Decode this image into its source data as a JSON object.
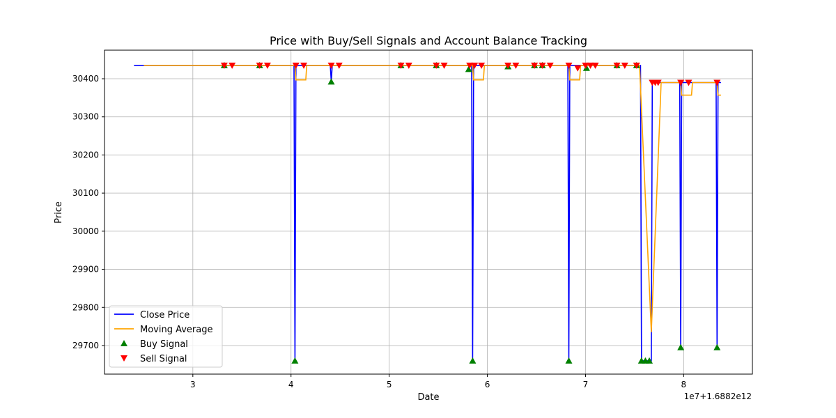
{
  "chart_data": {
    "type": "line",
    "title": "Price with Buy/Sell Signals and Account Balance Tracking",
    "xlabel": "Date",
    "ylabel": "Price",
    "x_offset_label": "1e7+1.6882e12",
    "xlim": [
      2.1,
      8.7
    ],
    "ylim": [
      29625,
      30475
    ],
    "x_ticks": [
      3,
      4,
      5,
      6,
      7,
      8
    ],
    "y_ticks": [
      29700,
      29800,
      29900,
      30000,
      30100,
      30200,
      30300,
      30400
    ],
    "grid": true,
    "legend_position": "lower-left",
    "colors": {
      "close": "#0000ff",
      "ma": "#ffa500",
      "buy": "#008000",
      "sell": "#ff0000",
      "grid": "#b0b0b0"
    },
    "series": [
      {
        "name": "Close Price",
        "points": [
          [
            2.4,
            30435
          ],
          [
            4.03,
            30435
          ],
          [
            4.04,
            29660
          ],
          [
            4.05,
            30435
          ],
          [
            4.4,
            30435
          ],
          [
            4.41,
            30392
          ],
          [
            4.42,
            30435
          ],
          [
            5.84,
            30435
          ],
          [
            5.85,
            29660
          ],
          [
            5.86,
            30435
          ],
          [
            6.82,
            30435
          ],
          [
            6.83,
            29660
          ],
          [
            6.84,
            30435
          ],
          [
            7.56,
            30435
          ],
          [
            7.57,
            29660
          ],
          [
            7.67,
            29660
          ],
          [
            7.68,
            30390
          ],
          [
            7.96,
            30390
          ],
          [
            7.97,
            29695
          ],
          [
            7.98,
            30390
          ],
          [
            8.33,
            30390
          ],
          [
            8.34,
            29695
          ],
          [
            8.35,
            30390
          ],
          [
            8.38,
            30390
          ]
        ]
      },
      {
        "name": "Moving Average",
        "points": [
          [
            2.5,
            30435
          ],
          [
            4.04,
            30435
          ],
          [
            4.05,
            30397
          ],
          [
            4.15,
            30397
          ],
          [
            4.16,
            30435
          ],
          [
            5.85,
            30435
          ],
          [
            5.86,
            30397
          ],
          [
            5.96,
            30397
          ],
          [
            5.97,
            30435
          ],
          [
            6.83,
            30435
          ],
          [
            6.84,
            30397
          ],
          [
            6.94,
            30397
          ],
          [
            6.95,
            30435
          ],
          [
            7.55,
            30435
          ],
          [
            7.67,
            29735
          ],
          [
            7.77,
            30390
          ],
          [
            7.97,
            30390
          ],
          [
            7.98,
            30357
          ],
          [
            8.08,
            30357
          ],
          [
            8.09,
            30390
          ],
          [
            8.34,
            30390
          ],
          [
            8.35,
            30357
          ],
          [
            8.38,
            30357
          ]
        ]
      }
    ],
    "buy_signals": [
      [
        3.32,
        30435
      ],
      [
        3.68,
        30435
      ],
      [
        4.04,
        29660
      ],
      [
        4.41,
        30392
      ],
      [
        5.12,
        30435
      ],
      [
        5.48,
        30435
      ],
      [
        5.81,
        30425
      ],
      [
        5.85,
        29660
      ],
      [
        6.21,
        30432
      ],
      [
        6.48,
        30435
      ],
      [
        6.56,
        30435
      ],
      [
        6.83,
        29660
      ],
      [
        7.01,
        30428
      ],
      [
        7.32,
        30435
      ],
      [
        7.52,
        30435
      ],
      [
        7.57,
        29660
      ],
      [
        7.61,
        29660
      ],
      [
        7.65,
        29660
      ],
      [
        7.97,
        29695
      ],
      [
        8.34,
        29695
      ]
    ],
    "sell_signals": [
      [
        3.32,
        30435
      ],
      [
        3.4,
        30435
      ],
      [
        3.68,
        30435
      ],
      [
        3.76,
        30435
      ],
      [
        4.05,
        30435
      ],
      [
        4.13,
        30435
      ],
      [
        4.41,
        30435
      ],
      [
        4.49,
        30435
      ],
      [
        5.12,
        30435
      ],
      [
        5.2,
        30435
      ],
      [
        5.48,
        30435
      ],
      [
        5.56,
        30435
      ],
      [
        5.82,
        30435
      ],
      [
        5.87,
        30435
      ],
      [
        5.94,
        30435
      ],
      [
        6.21,
        30435
      ],
      [
        6.29,
        30435
      ],
      [
        6.48,
        30435
      ],
      [
        6.56,
        30435
      ],
      [
        6.64,
        30435
      ],
      [
        6.83,
        30435
      ],
      [
        6.92,
        30428
      ],
      [
        7.0,
        30435
      ],
      [
        7.05,
        30435
      ],
      [
        7.1,
        30435
      ],
      [
        7.32,
        30435
      ],
      [
        7.4,
        30435
      ],
      [
        7.52,
        30435
      ],
      [
        7.68,
        30390
      ],
      [
        7.71,
        30390
      ],
      [
        7.74,
        30390
      ],
      [
        7.97,
        30390
      ],
      [
        8.05,
        30390
      ],
      [
        8.34,
        30390
      ]
    ],
    "legend": [
      {
        "label": "Close Price",
        "kind": "line",
        "color": "#0000ff"
      },
      {
        "label": "Moving Average",
        "kind": "line",
        "color": "#ffa500"
      },
      {
        "label": "Buy Signal",
        "kind": "up",
        "color": "#008000"
      },
      {
        "label": "Sell Signal",
        "kind": "down",
        "color": "#ff0000"
      }
    ]
  }
}
